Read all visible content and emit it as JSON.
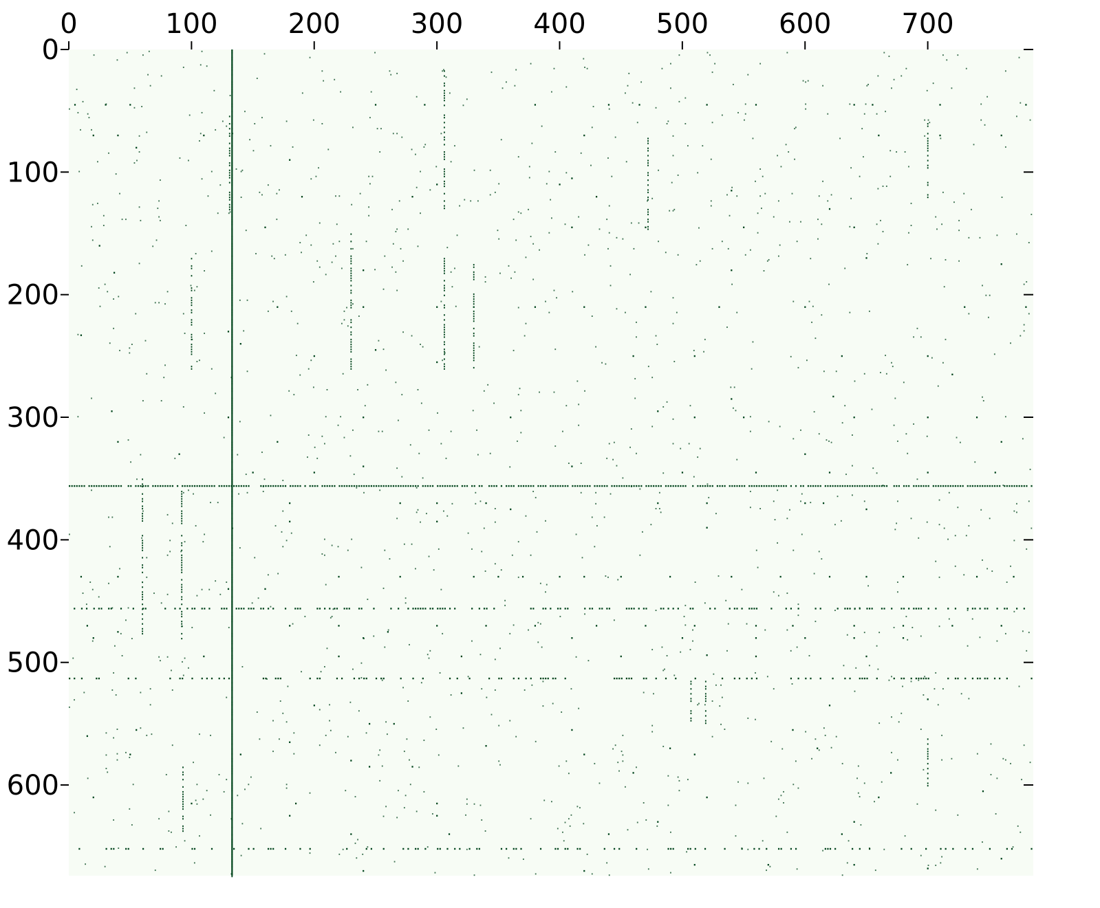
{
  "chart_data": {
    "type": "heatmap",
    "title": "",
    "xlabel": "",
    "ylabel": "",
    "xlim": [
      0,
      786
    ],
    "ylim": [
      0,
      674
    ],
    "x_ticks": [
      "0",
      "100",
      "200",
      "300",
      "400",
      "500",
      "600",
      "700"
    ],
    "x_tick_values": [
      0,
      100,
      200,
      300,
      400,
      500,
      600,
      700
    ],
    "y_ticks": [
      "0",
      "100",
      "200",
      "300",
      "400",
      "500",
      "600"
    ],
    "y_tick_values": [
      0,
      100,
      200,
      300,
      400,
      500,
      600
    ],
    "x_axis_position": "top",
    "grid": false,
    "colors": {
      "background": "#f7fcf5",
      "mark": "#00441b"
    },
    "dense_rows": [
      356,
      456,
      513,
      652
    ],
    "dense_cols": [
      133
    ],
    "segments": [
      {
        "x": 133,
        "y0": 0,
        "y1": 674
      },
      {
        "x": 131,
        "y0": 50,
        "y1": 130
      },
      {
        "x": 100,
        "y0": 170,
        "y1": 260
      },
      {
        "x": 306,
        "y0": 15,
        "y1": 130
      },
      {
        "x": 306,
        "y0": 170,
        "y1": 260
      },
      {
        "x": 472,
        "y0": 70,
        "y1": 150
      },
      {
        "x": 92,
        "y0": 356,
        "y1": 480
      },
      {
        "x": 93,
        "y0": 585,
        "y1": 640
      },
      {
        "x": 519,
        "y0": 513,
        "y1": 550
      },
      {
        "x": 507,
        "y0": 513,
        "y1": 548
      },
      {
        "x": 700,
        "y0": 60,
        "y1": 120
      },
      {
        "x": 700,
        "y0": 560,
        "y1": 600
      },
      {
        "x": 330,
        "y0": 175,
        "y1": 260
      },
      {
        "x": 230,
        "y0": 150,
        "y1": 260
      },
      {
        "x": 60,
        "y0": 350,
        "y1": 480
      }
    ],
    "points": [
      [
        50,
        45
      ],
      [
        30,
        45
      ],
      [
        5,
        45
      ],
      [
        20,
        70
      ],
      [
        40,
        70
      ],
      [
        55,
        80
      ],
      [
        110,
        70
      ],
      [
        250,
        45
      ],
      [
        290,
        45
      ],
      [
        380,
        45
      ],
      [
        440,
        45
      ],
      [
        465,
        45
      ],
      [
        520,
        45
      ],
      [
        560,
        45
      ],
      [
        640,
        45
      ],
      [
        655,
        45
      ],
      [
        710,
        45
      ],
      [
        780,
        45
      ],
      [
        420,
        70
      ],
      [
        660,
        70
      ],
      [
        710,
        70
      ],
      [
        760,
        70
      ],
      [
        180,
        90
      ],
      [
        280,
        120
      ],
      [
        410,
        105
      ],
      [
        430,
        120
      ],
      [
        540,
        115
      ],
      [
        620,
        130
      ],
      [
        160,
        145
      ],
      [
        410,
        145
      ],
      [
        470,
        145
      ],
      [
        550,
        145
      ],
      [
        640,
        145
      ],
      [
        37,
        182
      ],
      [
        240,
        180
      ],
      [
        540,
        180
      ],
      [
        650,
        170
      ],
      [
        760,
        175
      ],
      [
        170,
        210
      ],
      [
        240,
        210
      ],
      [
        300,
        210
      ],
      [
        330,
        210
      ],
      [
        380,
        210
      ],
      [
        420,
        210
      ],
      [
        470,
        210
      ],
      [
        530,
        210
      ],
      [
        600,
        210
      ],
      [
        730,
        210
      ],
      [
        780,
        210
      ],
      [
        140,
        240
      ],
      [
        200,
        250
      ],
      [
        250,
        245
      ],
      [
        300,
        255
      ],
      [
        460,
        250
      ],
      [
        510,
        250
      ],
      [
        630,
        250
      ],
      [
        700,
        250
      ],
      [
        720,
        265
      ],
      [
        540,
        285
      ],
      [
        623,
        283
      ],
      [
        35,
        295
      ],
      [
        130,
        300
      ],
      [
        240,
        300
      ],
      [
        480,
        295
      ],
      [
        510,
        300
      ],
      [
        550,
        300
      ],
      [
        640,
        300
      ],
      [
        700,
        300
      ],
      [
        740,
        300
      ],
      [
        760,
        320
      ],
      [
        600,
        330
      ],
      [
        40,
        320
      ],
      [
        170,
        320
      ],
      [
        90,
        330
      ],
      [
        150,
        345
      ],
      [
        200,
        345
      ],
      [
        240,
        340
      ],
      [
        410,
        340
      ],
      [
        500,
        345
      ],
      [
        560,
        345
      ],
      [
        620,
        345
      ],
      [
        700,
        345
      ],
      [
        755,
        345
      ],
      [
        180,
        370
      ],
      [
        270,
        370
      ],
      [
        300,
        370
      ],
      [
        340,
        370
      ],
      [
        360,
        375
      ],
      [
        480,
        370
      ],
      [
        520,
        370
      ],
      [
        600,
        370
      ],
      [
        615,
        370
      ],
      [
        650,
        375
      ],
      [
        180,
        385
      ],
      [
        300,
        385
      ],
      [
        520,
        390
      ],
      [
        10,
        430
      ],
      [
        40,
        430
      ],
      [
        130,
        440
      ],
      [
        160,
        440
      ],
      [
        220,
        430
      ],
      [
        270,
        430
      ],
      [
        330,
        430
      ],
      [
        350,
        430
      ],
      [
        370,
        430
      ],
      [
        400,
        430
      ],
      [
        420,
        430
      ],
      [
        450,
        430
      ],
      [
        490,
        430
      ],
      [
        540,
        430
      ],
      [
        580,
        430
      ],
      [
        620,
        430
      ],
      [
        650,
        430
      ],
      [
        680,
        430
      ],
      [
        740,
        430
      ],
      [
        770,
        430
      ],
      [
        15,
        470
      ],
      [
        40,
        475
      ],
      [
        180,
        470
      ],
      [
        220,
        470
      ],
      [
        260,
        475
      ],
      [
        300,
        470
      ],
      [
        340,
        470
      ],
      [
        380,
        470
      ],
      [
        430,
        470
      ],
      [
        470,
        470
      ],
      [
        510,
        470
      ],
      [
        560,
        470
      ],
      [
        590,
        470
      ],
      [
        640,
        470
      ],
      [
        680,
        470
      ],
      [
        720,
        470
      ],
      [
        760,
        470
      ],
      [
        20,
        480
      ],
      [
        240,
        480
      ],
      [
        410,
        480
      ],
      [
        500,
        480
      ],
      [
        560,
        480
      ],
      [
        600,
        480
      ],
      [
        640,
        480
      ],
      [
        680,
        480
      ],
      [
        520,
        494
      ],
      [
        110,
        495
      ],
      [
        220,
        495
      ],
      [
        320,
        495
      ],
      [
        450,
        495
      ],
      [
        560,
        495
      ],
      [
        650,
        495
      ],
      [
        200,
        535
      ],
      [
        320,
        525
      ],
      [
        620,
        535
      ],
      [
        700,
        530
      ],
      [
        55,
        555
      ],
      [
        245,
        550
      ],
      [
        265,
        550
      ],
      [
        410,
        555
      ],
      [
        590,
        555
      ],
      [
        15,
        560
      ],
      [
        180,
        565
      ],
      [
        340,
        568
      ],
      [
        420,
        575
      ],
      [
        490,
        570
      ],
      [
        510,
        575
      ],
      [
        610,
        570
      ],
      [
        50,
        575
      ],
      [
        140,
        575
      ],
      [
        230,
        580
      ],
      [
        245,
        585
      ],
      [
        280,
        585
      ],
      [
        460,
        590
      ],
      [
        670,
        590
      ],
      [
        20,
        610
      ],
      [
        100,
        615
      ],
      [
        185,
        615
      ],
      [
        300,
        615
      ],
      [
        520,
        610
      ],
      [
        660,
        610
      ],
      [
        745,
        605
      ],
      [
        180,
        625
      ],
      [
        300,
        625
      ],
      [
        440,
        640
      ],
      [
        480,
        630
      ],
      [
        630,
        640
      ],
      [
        640,
        630
      ],
      [
        230,
        640
      ],
      [
        310,
        640
      ],
      [
        510,
        665
      ],
      [
        570,
        665
      ],
      [
        640,
        665
      ],
      [
        760,
        660
      ],
      [
        240,
        670
      ],
      [
        420,
        670
      ],
      [
        700,
        668
      ],
      [
        10,
        233
      ],
      [
        300,
        110
      ],
      [
        190,
        120
      ],
      [
        400,
        110
      ],
      [
        130,
        230
      ],
      [
        25,
        160
      ],
      [
        360,
        300
      ]
    ]
  }
}
